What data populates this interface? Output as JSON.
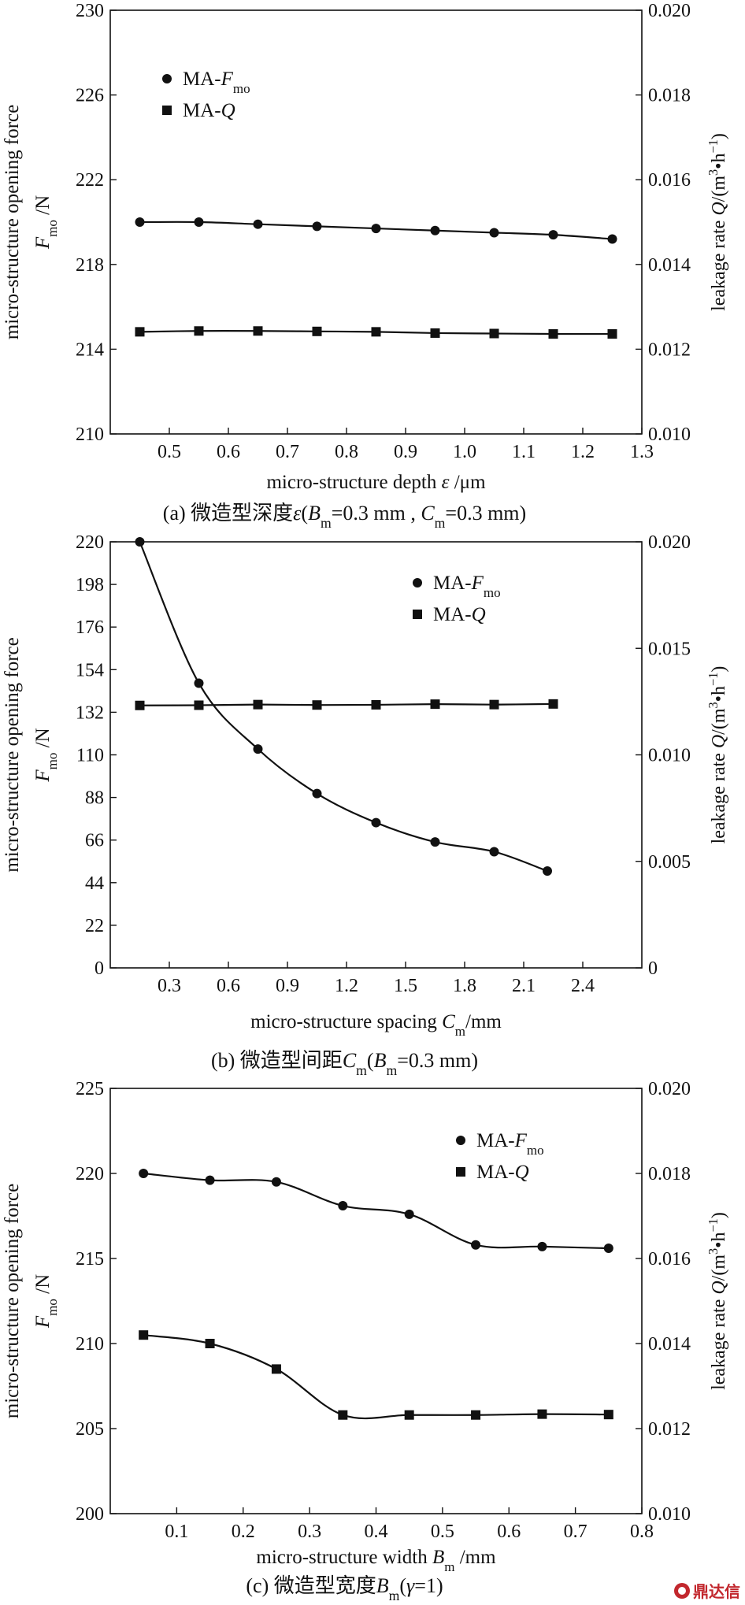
{
  "watermark": "鼎达信",
  "chart_data": [
    {
      "type": "line",
      "caption": "(a) 微造型深度ε(Bm=0.3 mm , Cm=0.3 mm)",
      "xlabel": "micro-structure depth ε /μm",
      "ylabel_left": [
        "micro-structure opening force",
        "Fmo /N"
      ],
      "ylabel_right": "leakage rate Q/(m³•h⁻¹)",
      "xlim": [
        0.4,
        1.3
      ],
      "xticks": [
        0.5,
        0.6,
        0.7,
        0.8,
        0.9,
        1.0,
        1.1,
        1.2,
        1.3
      ],
      "xtick_labels": [
        "0.5",
        "0.6",
        "0.7",
        "0.8",
        "0.9",
        "1.0",
        "1.1",
        "1.2",
        "1.3"
      ],
      "ylim_left": [
        210,
        230
      ],
      "yticks_left": [
        210,
        214,
        218,
        222,
        226,
        230
      ],
      "ylim_right": [
        0.01,
        0.02
      ],
      "yticks_right": [
        "0.010",
        "0.012",
        "0.014",
        "0.016",
        "0.018",
        "0.020"
      ],
      "legend_position": "top-left",
      "series": [
        {
          "name": "MA-Fmo",
          "marker": "circle",
          "axis": "left",
          "x": [
            0.45,
            0.55,
            0.65,
            0.75,
            0.85,
            0.95,
            1.05,
            1.15,
            1.25
          ],
          "y": [
            220.0,
            220.0,
            219.9,
            219.8,
            219.7,
            219.6,
            219.5,
            219.4,
            219.2
          ]
        },
        {
          "name": "MA-Q",
          "marker": "square",
          "axis": "right",
          "x": [
            0.45,
            0.55,
            0.65,
            0.75,
            0.85,
            0.95,
            1.05,
            1.15,
            1.25
          ],
          "y": [
            0.01241,
            0.01243,
            0.01243,
            0.01242,
            0.01241,
            0.01238,
            0.01237,
            0.01236,
            0.01236
          ]
        }
      ]
    },
    {
      "type": "line",
      "caption": "(b) 微造型间距Cm(Bm=0.3 mm)",
      "xlabel": "micro-structure spacing Cm/mm",
      "ylabel_left": [
        "micro-structure opening force",
        "Fmo /N"
      ],
      "ylabel_right": "leakage rate Q/(m³•h⁻¹)",
      "xlim": [
        0.0,
        2.7
      ],
      "xticks": [
        0.3,
        0.6,
        0.9,
        1.2,
        1.5,
        1.8,
        2.1,
        2.4
      ],
      "xtick_labels": [
        "0.3",
        "0.6",
        "0.9",
        "1.2",
        "1.5",
        "1.8",
        "2.1",
        "2.4"
      ],
      "ylim_left": [
        0,
        220
      ],
      "yticks_left": [
        0,
        22,
        44,
        66,
        88,
        110,
        132,
        154,
        176,
        198,
        220
      ],
      "ylim_right": [
        0,
        0.02
      ],
      "yticks_right": [
        "0",
        "0.005",
        "0.010",
        "0.015",
        "0.020"
      ],
      "legend_position": "top-right",
      "series": [
        {
          "name": "MA-Fmo",
          "marker": "circle",
          "axis": "left",
          "x": [
            0.15,
            0.45,
            0.75,
            1.05,
            1.35,
            1.65,
            1.95,
            2.22
          ],
          "y": [
            220,
            147,
            113,
            90,
            75,
            65,
            60,
            50
          ]
        },
        {
          "name": "MA-Q",
          "marker": "square",
          "axis": "right",
          "x": [
            0.15,
            0.45,
            0.75,
            1.05,
            1.35,
            1.65,
            1.95,
            2.25
          ],
          "y": [
            0.01232,
            0.01233,
            0.01236,
            0.01234,
            0.01235,
            0.01238,
            0.01236,
            0.01239
          ]
        }
      ]
    },
    {
      "type": "line",
      "caption": "(c) 微造型宽度Bm(γ=1)",
      "xlabel": "micro-structure width Bm /mm",
      "ylabel_left": [
        "micro-structure opening force",
        "Fmo /N"
      ],
      "ylabel_right": "leakage rate Q/(m³•h⁻¹)",
      "xlim": [
        0.0,
        0.8
      ],
      "xticks": [
        0.1,
        0.2,
        0.3,
        0.4,
        0.5,
        0.6,
        0.7,
        0.8
      ],
      "xtick_labels": [
        "0.1",
        "0.2",
        "0.3",
        "0.4",
        "0.5",
        "0.6",
        "0.7",
        "0.8"
      ],
      "ylim_left": [
        200,
        225
      ],
      "yticks_left": [
        200,
        205,
        210,
        215,
        220,
        225
      ],
      "ylim_right": [
        0.01,
        0.02
      ],
      "yticks_right": [
        "0.010",
        "0.012",
        "0.014",
        "0.016",
        "0.018",
        "0.020"
      ],
      "legend_position": "top-right",
      "series": [
        {
          "name": "MA-Fmo",
          "marker": "circle",
          "axis": "left",
          "x": [
            0.05,
            0.15,
            0.25,
            0.35,
            0.45,
            0.55,
            0.65,
            0.75
          ],
          "y": [
            220.0,
            219.6,
            219.5,
            218.1,
            217.6,
            215.8,
            215.7,
            215.6
          ]
        },
        {
          "name": "MA-Q",
          "marker": "square",
          "axis": "right",
          "x": [
            0.05,
            0.15,
            0.25,
            0.35,
            0.45,
            0.55,
            0.65,
            0.75
          ],
          "y": [
            0.0142,
            0.014,
            0.0134,
            0.01232,
            0.01232,
            0.01232,
            0.01234,
            0.01233
          ]
        }
      ]
    }
  ]
}
